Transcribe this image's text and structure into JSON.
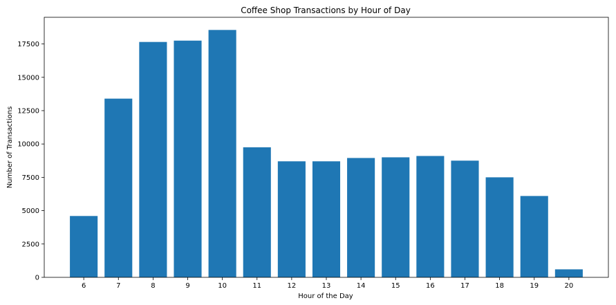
{
  "chart_data": {
    "type": "bar",
    "title": "Coffee Shop Transactions by Hour of Day",
    "xlabel": "Hour of the Day",
    "ylabel": "Number of Transactions",
    "categories": [
      "6",
      "7",
      "8",
      "9",
      "10",
      "11",
      "12",
      "13",
      "14",
      "15",
      "16",
      "17",
      "18",
      "19",
      "20"
    ],
    "values": [
      4600,
      13400,
      17650,
      17750,
      18550,
      9750,
      8700,
      8700,
      8950,
      9000,
      9100,
      8750,
      7500,
      6100,
      600
    ],
    "ylim": [
      0,
      19500
    ],
    "yticks": [
      0,
      2500,
      5000,
      7500,
      10000,
      12500,
      15000,
      17500
    ],
    "ytick_labels": [
      "0",
      "2500",
      "5000",
      "7500",
      "10000",
      "12500",
      "15000",
      "17500"
    ],
    "bar_color": "#1f77b4",
    "grid": false,
    "legend": "none"
  }
}
